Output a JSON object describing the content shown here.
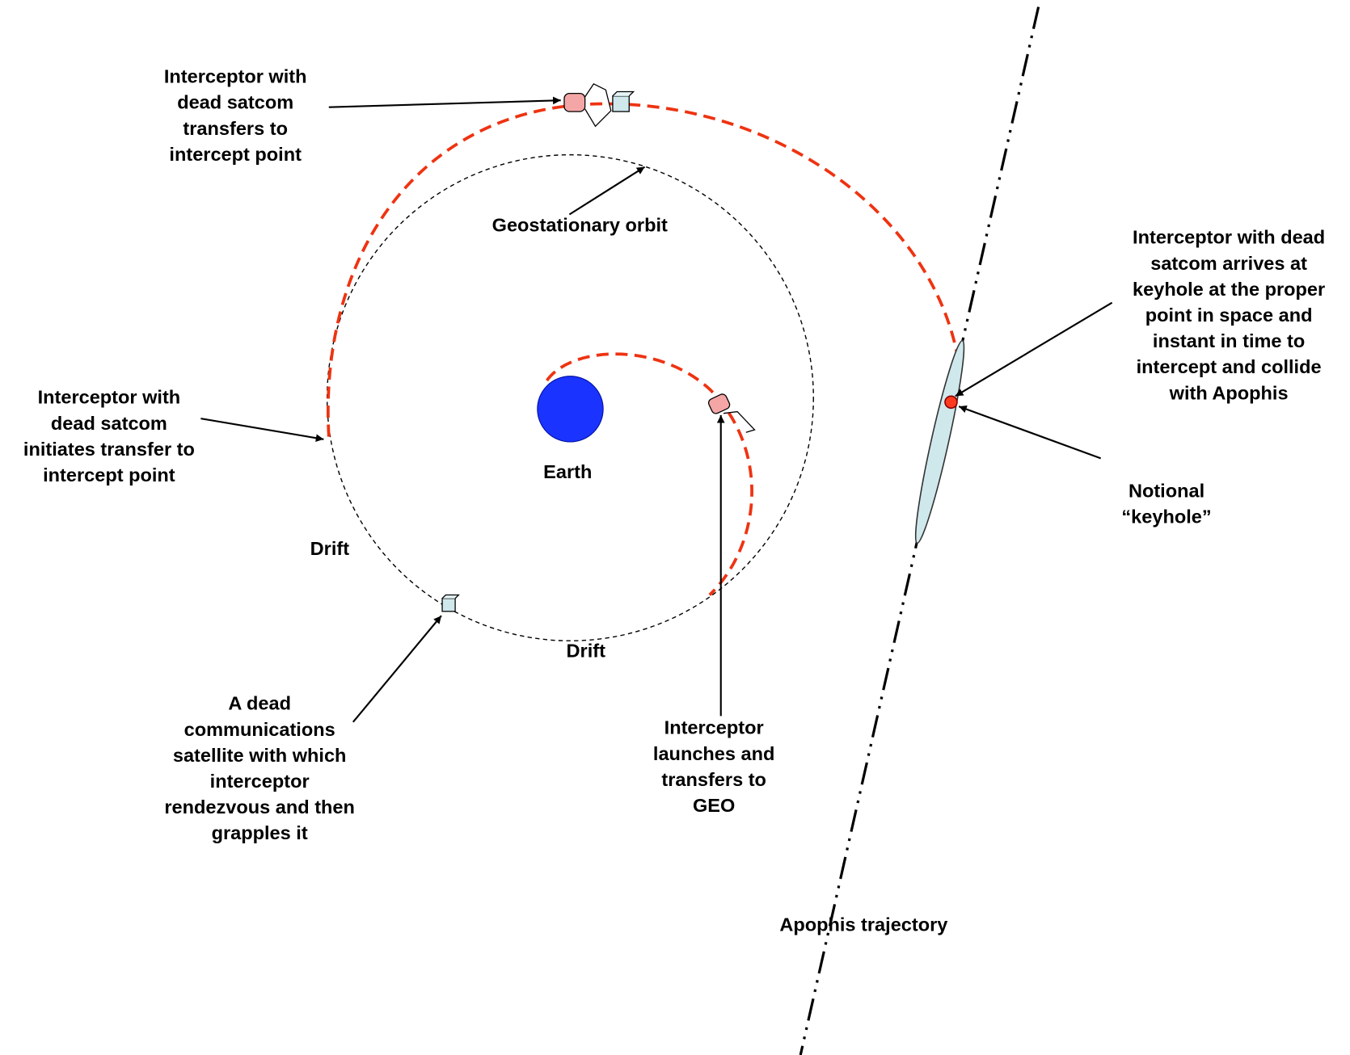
{
  "annotations": [
    {
      "lines": [
        "Interceptor with",
        "dead satcom",
        "transfers to",
        "intercept point"
      ]
    },
    {
      "lines": [
        "Geostationary orbit"
      ]
    },
    {
      "lines": [
        "Interceptor with dead",
        "satcom arrives at",
        "keyhole at the proper",
        "point in space and",
        "instant in time to",
        "intercept and collide",
        "with Apophis"
      ]
    },
    {
      "lines": [
        "Notional",
        "“keyhole”"
      ]
    },
    {
      "lines": [
        "Interceptor with",
        "dead satcom",
        "initiates transfer to",
        "intercept point"
      ]
    },
    {
      "lines": [
        "Earth"
      ]
    },
    {
      "lines": [
        "Drift"
      ]
    },
    {
      "lines": [
        "Drift"
      ]
    },
    {
      "lines": [
        "A dead",
        "communications",
        "satellite with which",
        "interceptor",
        "rendezvous and then",
        "grapples it"
      ]
    },
    {
      "lines": [
        "Interceptor",
        "launches and",
        "transfers to",
        "GEO"
      ]
    },
    {
      "lines": [
        "Apophis trajectory"
      ]
    }
  ]
}
